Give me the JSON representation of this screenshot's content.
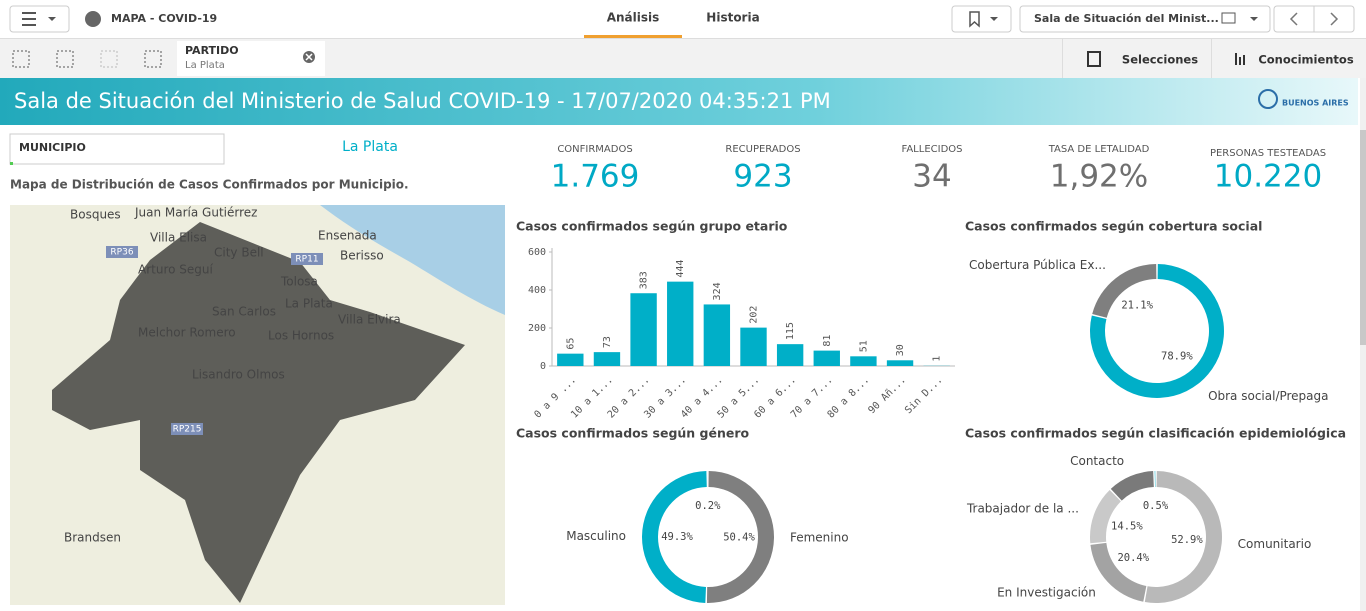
{
  "app_name": "MAPA - COVID-19",
  "tabs": [
    "Análisis",
    "Historia"
  ],
  "sheet_name": "Sala de Situación del Minist...",
  "selection": {
    "field": "PARTIDO",
    "value": "La Plata"
  },
  "toolbar_buttons": [
    "Selecciones",
    "Conocimientos"
  ],
  "header": {
    "title": "Sala de Situación del Ministerio de Salud COVID-19 - 17/07/2020 04:35:21 PM",
    "logo": "BUENOS AIRES"
  },
  "filter": {
    "label": "MUNICIPIO",
    "value": "La Plata"
  },
  "map": {
    "title": "Mapa de Distribución de Casos Confirmados por Municipio.",
    "places": [
      "Bosques",
      "Juan María Gutiérrez",
      "Villa Elisa",
      "City Bell",
      "Ensenada",
      "Berisso",
      "Arturo Seguí",
      "Tolosa",
      "La Plata",
      "San Carlos",
      "Villa Elvira",
      "Melchor Romero",
      "Los Hornos",
      "Lisandro Olmos",
      "Brandsen"
    ],
    "roads": [
      "RP36",
      "RP11",
      "RP215"
    ]
  },
  "kpis": [
    {
      "label": "CONFIRMADOS",
      "value": "1.769",
      "color": "#00a9c5"
    },
    {
      "label": "RECUPERADOS",
      "value": "923",
      "color": "#00a9c5"
    },
    {
      "label": "FALLECIDOS",
      "value": "34",
      "color": "#6f6f6f"
    },
    {
      "label": "TASA DE LETALIDAD",
      "value": "1,92%",
      "color": "#6f6f6f"
    },
    {
      "label": "PERSONAS TESTEADAS",
      "value": "10.220",
      "color": "#00a9c5"
    }
  ],
  "chart_data": [
    {
      "type": "bar",
      "title": "Casos confirmados según grupo etario",
      "categories": [
        "0 a 9 ...",
        "10 a 1...",
        "20 a 2...",
        "30 a 3...",
        "40 a 4...",
        "50 a 5...",
        "60 a 6...",
        "70 a 7...",
        "80 a 8...",
        "90 Añ...",
        "Sin D..."
      ],
      "values": [
        65,
        73,
        383,
        444,
        324,
        202,
        115,
        81,
        51,
        30,
        1
      ],
      "color": "#00afc8",
      "ylim": [
        0,
        600
      ],
      "yticks": [
        0,
        200,
        400,
        600
      ]
    },
    {
      "type": "donut",
      "title": "Casos confirmados según cobertura social",
      "categories": [
        "Obra social/Prepaga",
        "Cobertura Pública Ex..."
      ],
      "values": [
        78.9,
        21.1
      ],
      "value_labels": [
        "78.9%",
        "21.1%"
      ],
      "colors": [
        "#00afc8",
        "#7f7f7f"
      ]
    },
    {
      "type": "donut",
      "title": "Casos confirmados según género",
      "categories": [
        "Femenino",
        "Masculino",
        null
      ],
      "values": [
        50.4,
        49.3,
        0.2
      ],
      "value_labels": [
        "50.4%",
        "49.3%",
        "0.2%"
      ],
      "colors": [
        "#7f7f7f",
        "#00afc8",
        "#4a4a4a"
      ]
    },
    {
      "type": "donut",
      "title": "Casos confirmados según clasificación epidemiológica",
      "categories": [
        "Comunitario",
        "En Investigación",
        "Trabajador de la ...",
        "Contacto",
        null
      ],
      "values": [
        52.9,
        20.4,
        14.5,
        11.7,
        0.5
      ],
      "value_labels": [
        "52.9%",
        "20.4%",
        "14.5%",
        null,
        "0.5%"
      ],
      "colors": [
        "#b9b9b9",
        "#a3a3a3",
        "#c9c9c9",
        "#7a7a7a",
        "#00afc8"
      ]
    }
  ]
}
